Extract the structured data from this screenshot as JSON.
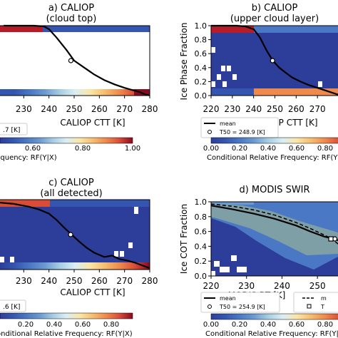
{
  "colors": {
    "white": "#ffffff",
    "colormap": [
      "#2d3e9a",
      "#3556b0",
      "#4a78c4",
      "#6b9ad1",
      "#a7cde3",
      "#d9eef5",
      "#fbe6a8",
      "#f6bd70",
      "#ee8a4c",
      "#d94c37",
      "#b71c2a",
      "#8a0a1f"
    ],
    "mean_line": "#000000",
    "cot_band": "#7f9fa6"
  },
  "shared": {
    "colorbar_ticks": [
      "0.00",
      "0.20",
      "0.40",
      "0.60",
      "0.80",
      "1.00"
    ],
    "colorbar_label": "Conditional Relative Frequency: RF(Y|X)",
    "ctt_ticks": [
      "220",
      "230",
      "240",
      "250",
      "260",
      "270",
      "280"
    ],
    "frac_ticks": [
      "0.0",
      "0.2",
      "0.4",
      "0.6",
      "0.8",
      "1.0"
    ]
  },
  "chart_data": [
    {
      "panel": "a",
      "type": "heatmap",
      "title": "a) CALIOP",
      "subtitle": "(cloud top)",
      "xlabel": "CALIOP CTT [K]",
      "ylabel": "",
      "xlim": [
        220,
        280
      ],
      "ylim": [
        0,
        1
      ],
      "legend_text": ".7 [K]",
      "mean_curve": {
        "x": [
          222,
          228,
          234,
          238,
          240,
          243,
          247,
          250,
          254,
          258,
          262,
          266,
          270,
          273,
          276,
          278,
          280
        ],
        "y": [
          1.0,
          1.0,
          1.0,
          0.99,
          0.95,
          0.83,
          0.65,
          0.5,
          0.4,
          0.3,
          0.22,
          0.16,
          0.11,
          0.08,
          0.05,
          0.02,
          0.0
        ]
      },
      "t50": {
        "x": 248.7,
        "y": 0.5
      }
    },
    {
      "panel": "b",
      "type": "heatmap",
      "title": "b) CALIOP",
      "subtitle": "(upper cloud layer)",
      "xlabel": "CALIOP CTT [K]",
      "ylabel": "Ice Phase Fraction",
      "xlim": [
        220,
        280
      ],
      "ylim": [
        0,
        1
      ],
      "legend": [
        {
          "symbol": "line",
          "label": "mean"
        },
        {
          "symbol": "circle",
          "label": "T50 = 248.9 [K]"
        }
      ],
      "mean_curve": {
        "x": [
          220,
          226,
          232,
          236,
          240,
          243,
          246,
          249,
          252,
          255,
          258,
          262,
          266,
          270,
          274,
          278,
          280
        ],
        "y": [
          1.0,
          1.0,
          1.0,
          0.99,
          0.95,
          0.83,
          0.65,
          0.5,
          0.4,
          0.33,
          0.26,
          0.2,
          0.15,
          0.11,
          0.07,
          0.03,
          0.01
        ]
      },
      "t50": {
        "x": 248.9,
        "y": 0.5
      }
    },
    {
      "panel": "c",
      "type": "heatmap",
      "title": "c) CALIOP",
      "subtitle": "(all detected)",
      "xlabel": "CALIOP CTT [K]",
      "ylabel": "",
      "xlim": [
        220,
        280
      ],
      "ylim": [
        0,
        1
      ],
      "legend_text": ".6 [K]",
      "mean_curve": {
        "x": [
          220,
          226,
          232,
          236,
          240,
          243,
          246,
          249,
          252,
          255,
          258,
          262,
          265,
          268,
          271,
          274,
          277,
          280
        ],
        "y": [
          0.96,
          0.94,
          0.9,
          0.86,
          0.8,
          0.71,
          0.6,
          0.5,
          0.4,
          0.31,
          0.24,
          0.18,
          0.2,
          0.15,
          0.13,
          0.1,
          0.06,
          0.02
        ]
      },
      "t50": {
        "x": 248.6,
        "y": 0.5
      }
    },
    {
      "panel": "d",
      "type": "heatmap",
      "title": "d) MODIS SWIR",
      "subtitle": "",
      "xlabel": "MODIS BT [K]",
      "ylabel": "Ice COT Fraction",
      "xlim": [
        220,
        260
      ],
      "ylim": [
        0,
        1
      ],
      "legend": [
        {
          "symbol": "line",
          "label": "mean"
        },
        {
          "symbol": "circle",
          "label": "T50 = 254.9 [K]"
        }
      ],
      "legend_right": [
        {
          "symbol": "dashed",
          "label": "m"
        },
        {
          "symbol": "square",
          "label": "T"
        }
      ],
      "mean_curve": {
        "x": [
          220,
          226,
          232,
          238,
          244,
          248,
          252,
          255,
          258,
          260
        ],
        "y": [
          0.95,
          0.9,
          0.84,
          0.77,
          0.68,
          0.6,
          0.53,
          0.5,
          0.43,
          0.35
        ]
      },
      "dashed_curve": {
        "x": [
          220,
          226,
          232,
          238,
          244,
          248,
          252,
          254,
          258,
          260
        ],
        "y": [
          0.97,
          0.94,
          0.89,
          0.82,
          0.72,
          0.64,
          0.55,
          0.5,
          0.35,
          0.25
        ]
      },
      "t50": {
        "x": 254.9,
        "y": 0.5
      },
      "t50_square": {
        "x": 253.8,
        "y": 0.5
      }
    }
  ]
}
